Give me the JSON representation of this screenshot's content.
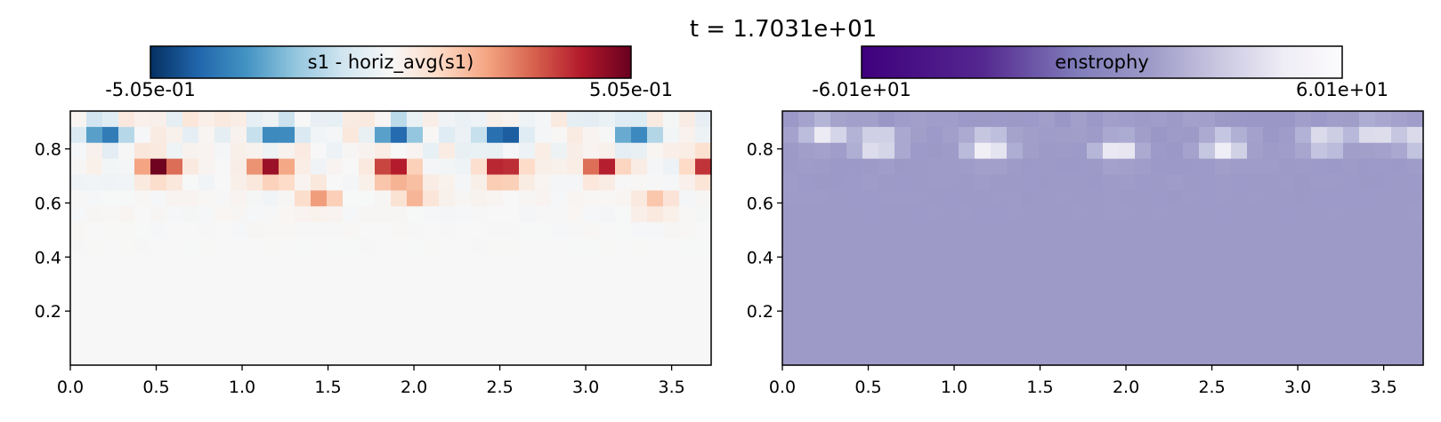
{
  "suptitle": "t = 1.7031e+01",
  "chart_data": [
    {
      "type": "heatmap",
      "panel": "left",
      "colorbar_label": "s1 - horiz_avg(s1)",
      "colormap": "RdBu_r",
      "vmin_label": "-5.05e-01",
      "vmax_label": "5.05e-01",
      "vmin": -0.505,
      "vmax": 0.505,
      "xlim": [
        0.0,
        3.73
      ],
      "ylim": [
        0.0,
        0.94
      ],
      "xticks": [
        "0.0",
        "0.5",
        "1.0",
        "1.5",
        "2.0",
        "2.5",
        "3.0",
        "3.5"
      ],
      "yticks": [
        "0.2",
        "0.4",
        "0.6",
        "0.8"
      ],
      "features": [
        {
          "x": 0.52,
          "y": 0.73,
          "value": 0.5
        },
        {
          "x": 1.17,
          "y": 0.72,
          "value": 0.48
        },
        {
          "x": 1.88,
          "y": 0.72,
          "value": 0.505
        },
        {
          "x": 2.52,
          "y": 0.72,
          "value": 0.48
        },
        {
          "x": 3.1,
          "y": 0.73,
          "value": 0.42
        },
        {
          "x": 3.73,
          "y": 0.73,
          "value": 0.45
        },
        {
          "x": 0.2,
          "y": 0.86,
          "value": -0.45
        },
        {
          "x": 1.2,
          "y": 0.86,
          "value": -0.4
        },
        {
          "x": 1.9,
          "y": 0.86,
          "value": -0.38
        },
        {
          "x": 2.52,
          "y": 0.85,
          "value": -0.45
        },
        {
          "x": 3.3,
          "y": 0.86,
          "value": -0.35
        },
        {
          "x": 1.45,
          "y": 0.62,
          "value": 0.2
        },
        {
          "x": 2.0,
          "y": 0.64,
          "value": 0.22
        },
        {
          "x": 3.4,
          "y": 0.6,
          "value": 0.15
        }
      ]
    },
    {
      "type": "heatmap",
      "panel": "right",
      "colorbar_label": "enstrophy",
      "colormap": "Purples_r",
      "vmin_label": "-6.01e+01",
      "vmax_label": "6.01e+01",
      "vmin": -60.1,
      "vmax": 60.1,
      "xlim": [
        0.0,
        3.73
      ],
      "ylim": [
        0.0,
        0.94
      ],
      "xticks": [
        "0.0",
        "0.5",
        "1.0",
        "1.5",
        "2.0",
        "2.5",
        "3.0",
        "3.5"
      ],
      "yticks": [
        "0.2",
        "0.4",
        "0.6",
        "0.8"
      ],
      "features": [
        {
          "x": 0.25,
          "y": 0.86,
          "value": 45
        },
        {
          "x": 0.55,
          "y": 0.82,
          "value": 55
        },
        {
          "x": 1.2,
          "y": 0.81,
          "value": 60
        },
        {
          "x": 1.95,
          "y": 0.8,
          "value": 50
        },
        {
          "x": 2.57,
          "y": 0.81,
          "value": 55
        },
        {
          "x": 3.15,
          "y": 0.83,
          "value": 45
        },
        {
          "x": 3.45,
          "y": 0.86,
          "value": 40
        },
        {
          "x": 3.7,
          "y": 0.83,
          "value": 42
        }
      ]
    }
  ]
}
